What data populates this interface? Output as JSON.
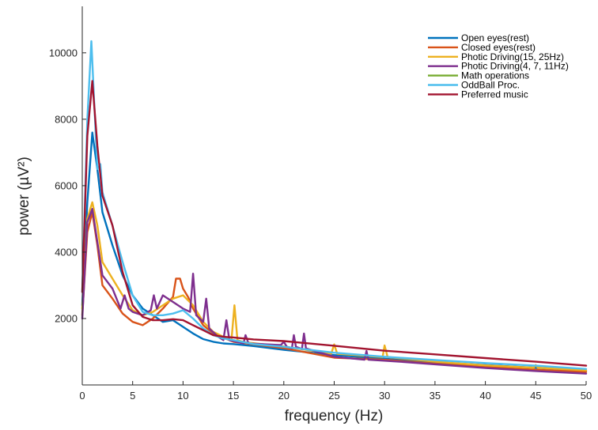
{
  "chart_data": {
    "type": "line",
    "xlabel": "frequency (Hz)",
    "ylabel": "power (µV²)",
    "xlim": [
      0,
      50
    ],
    "ylim": [
      0,
      11400
    ],
    "xticks": [
      0,
      5,
      10,
      15,
      20,
      25,
      30,
      35,
      40,
      45,
      50
    ],
    "yticks": [
      2000,
      4000,
      6000,
      8000,
      10000
    ],
    "grid": false,
    "legend_position": "top-right",
    "series": [
      {
        "name": "Open eyes(rest)",
        "color": "#0072BD",
        "points": [
          [
            0,
            2400
          ],
          [
            0.5,
            5500
          ],
          [
            1,
            7600
          ],
          [
            1.5,
            6500
          ],
          [
            2,
            5200
          ],
          [
            3,
            4200
          ],
          [
            4,
            3300
          ],
          [
            5,
            2700
          ],
          [
            6,
            2300
          ],
          [
            7,
            2100
          ],
          [
            8,
            1900
          ],
          [
            9,
            1950
          ],
          [
            10,
            1750
          ],
          [
            11,
            1550
          ],
          [
            12,
            1380
          ],
          [
            13,
            1300
          ],
          [
            14,
            1250
          ],
          [
            15,
            1230
          ],
          [
            17,
            1170
          ],
          [
            20,
            1060
          ],
          [
            25,
            900
          ],
          [
            30,
            790
          ],
          [
            35,
            680
          ],
          [
            40,
            600
          ],
          [
            45,
            520
          ],
          [
            50,
            430
          ]
        ]
      },
      {
        "name": "Closed eyes(rest)",
        "color": "#D95319",
        "points": [
          [
            0,
            2100
          ],
          [
            0.5,
            4600
          ],
          [
            1,
            5200
          ],
          [
            1.5,
            4200
          ],
          [
            2,
            3000
          ],
          [
            3,
            2600
          ],
          [
            4,
            2150
          ],
          [
            5,
            1900
          ],
          [
            6,
            1800
          ],
          [
            7,
            2000
          ],
          [
            8,
            2300
          ],
          [
            9,
            2650
          ],
          [
            9.3,
            3200
          ],
          [
            9.7,
            3200
          ],
          [
            10,
            2900
          ],
          [
            10.5,
            2650
          ],
          [
            11,
            2300
          ],
          [
            12,
            1800
          ],
          [
            13,
            1550
          ],
          [
            14,
            1420
          ],
          [
            15,
            1300
          ],
          [
            17,
            1220
          ],
          [
            20,
            1110
          ],
          [
            25,
            820
          ],
          [
            30,
            760
          ],
          [
            35,
            640
          ],
          [
            40,
            540
          ],
          [
            45,
            460
          ],
          [
            50,
            390
          ]
        ]
      },
      {
        "name": "Photic Driving(15, 25Hz)",
        "color": "#EDB120",
        "points": [
          [
            0,
            2300
          ],
          [
            0.5,
            5000
          ],
          [
            1,
            5500
          ],
          [
            1.5,
            4800
          ],
          [
            2,
            3700
          ],
          [
            3,
            3200
          ],
          [
            4,
            2700
          ],
          [
            5,
            2250
          ],
          [
            6,
            2100
          ],
          [
            7,
            2200
          ],
          [
            8,
            2400
          ],
          [
            9,
            2600
          ],
          [
            10,
            2700
          ],
          [
            11,
            2400
          ],
          [
            12,
            1900
          ],
          [
            13,
            1600
          ],
          [
            14,
            1450
          ],
          [
            14.8,
            1350
          ],
          [
            15.1,
            2400
          ],
          [
            15.4,
            1350
          ],
          [
            16,
            1290
          ],
          [
            20,
            1160
          ],
          [
            24.7,
            940
          ],
          [
            25,
            1220
          ],
          [
            25.3,
            940
          ],
          [
            29.8,
            840
          ],
          [
            30,
            1190
          ],
          [
            30.3,
            840
          ],
          [
            35,
            700
          ],
          [
            40,
            590
          ],
          [
            44.8,
            520
          ],
          [
            45,
            600
          ],
          [
            45.2,
            520
          ],
          [
            50,
            440
          ]
        ]
      },
      {
        "name": "Photic Driving(4, 7, 11Hz)",
        "color": "#7E2F8E",
        "points": [
          [
            0,
            2000
          ],
          [
            0.5,
            4900
          ],
          [
            1,
            5300
          ],
          [
            1.5,
            4300
          ],
          [
            2,
            3300
          ],
          [
            3,
            2900
          ],
          [
            3.8,
            2300
          ],
          [
            4.2,
            2700
          ],
          [
            4.6,
            2300
          ],
          [
            5,
            2200
          ],
          [
            6,
            2100
          ],
          [
            6.8,
            2250
          ],
          [
            7.1,
            2700
          ],
          [
            7.4,
            2300
          ],
          [
            8,
            2700
          ],
          [
            9,
            2500
          ],
          [
            10,
            2300
          ],
          [
            10.7,
            2200
          ],
          [
            11,
            3350
          ],
          [
            11.3,
            2100
          ],
          [
            12,
            1900
          ],
          [
            12.3,
            2600
          ],
          [
            12.6,
            1700
          ],
          [
            13.5,
            1450
          ],
          [
            14,
            1350
          ],
          [
            14.3,
            1950
          ],
          [
            14.6,
            1350
          ],
          [
            16,
            1250
          ],
          [
            16.2,
            1500
          ],
          [
            16.5,
            1250
          ],
          [
            19.7,
            1200
          ],
          [
            20,
            1300
          ],
          [
            20.3,
            1150
          ],
          [
            20.8,
            1100
          ],
          [
            21,
            1500
          ],
          [
            21.2,
            1150
          ],
          [
            21.8,
            1080
          ],
          [
            22,
            1550
          ],
          [
            22.2,
            1100
          ],
          [
            25,
            850
          ],
          [
            28,
            760
          ],
          [
            28.2,
            1020
          ],
          [
            28.4,
            760
          ],
          [
            32,
            690
          ],
          [
            35,
            620
          ],
          [
            40,
            510
          ],
          [
            45,
            420
          ],
          [
            50,
            340
          ]
        ]
      },
      {
        "name": "Math operations",
        "color": "#77AC30",
        "points": []
      },
      {
        "name": "OddBall Proc.",
        "color": "#4DBEEE",
        "points": [
          [
            0,
            2800
          ],
          [
            0.5,
            8000
          ],
          [
            0.9,
            10350
          ],
          [
            1.2,
            8400
          ],
          [
            1.5,
            6500
          ],
          [
            1.8,
            6650
          ],
          [
            2,
            5800
          ],
          [
            3,
            4800
          ],
          [
            4,
            3700
          ],
          [
            5,
            2700
          ],
          [
            6,
            2200
          ],
          [
            7,
            2100
          ],
          [
            8,
            2100
          ],
          [
            9,
            2150
          ],
          [
            10,
            2250
          ],
          [
            11,
            2000
          ],
          [
            12,
            1700
          ],
          [
            13,
            1500
          ],
          [
            14,
            1400
          ],
          [
            15,
            1350
          ],
          [
            17,
            1230
          ],
          [
            20,
            1150
          ],
          [
            25,
            970
          ],
          [
            30,
            850
          ],
          [
            35,
            750
          ],
          [
            40,
            660
          ],
          [
            45,
            580
          ],
          [
            50,
            480
          ]
        ]
      },
      {
        "name": "Preferred music",
        "color": "#A2142F",
        "points": [
          [
            0,
            2800
          ],
          [
            0.5,
            7500
          ],
          [
            1,
            9150
          ],
          [
            1.5,
            7200
          ],
          [
            2,
            5700
          ],
          [
            3,
            4800
          ],
          [
            4,
            3400
          ],
          [
            5,
            2400
          ],
          [
            6,
            2050
          ],
          [
            7,
            1950
          ],
          [
            8,
            1950
          ],
          [
            9,
            1980
          ],
          [
            10,
            1950
          ],
          [
            11,
            1800
          ],
          [
            12,
            1650
          ],
          [
            13,
            1500
          ],
          [
            14,
            1450
          ],
          [
            15,
            1430
          ],
          [
            17,
            1370
          ],
          [
            20,
            1320
          ],
          [
            25,
            1180
          ],
          [
            30,
            1030
          ],
          [
            35,
            920
          ],
          [
            40,
            810
          ],
          [
            45,
            700
          ],
          [
            50,
            580
          ]
        ]
      }
    ]
  }
}
